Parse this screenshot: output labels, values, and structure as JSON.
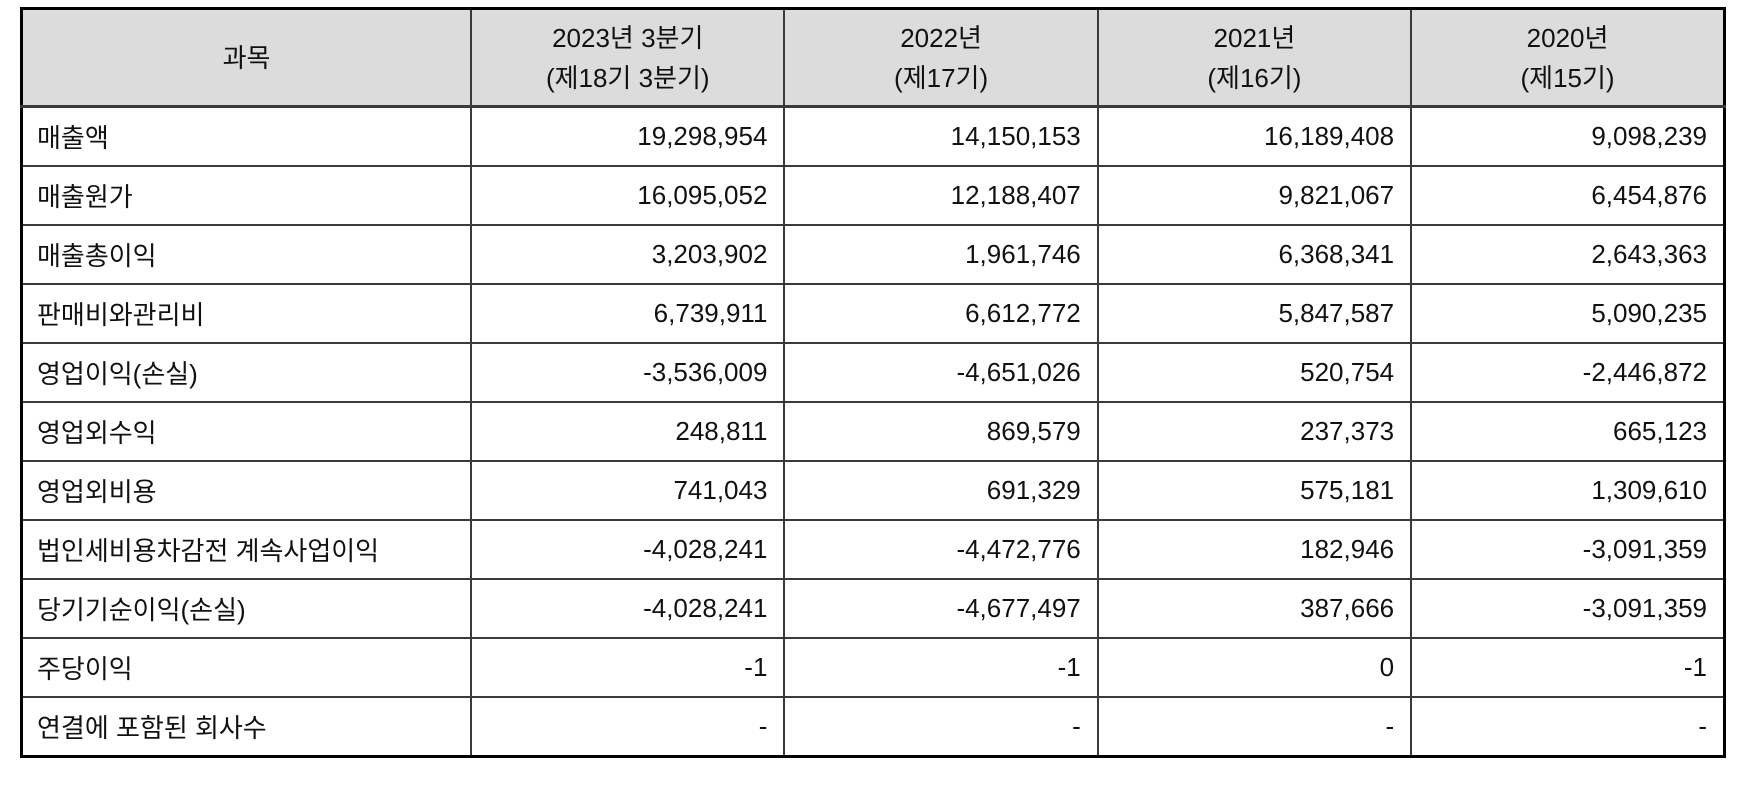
{
  "table": {
    "columns": [
      {
        "line1": "과목",
        "line2": ""
      },
      {
        "line1": "2023년 3분기",
        "line2": "(제18기 3분기)"
      },
      {
        "line1": "2022년",
        "line2": "(제17기)"
      },
      {
        "line1": "2021년",
        "line2": "(제16기)"
      },
      {
        "line1": "2020년",
        "line2": "(제15기)"
      }
    ],
    "rows": [
      {
        "label": "매출액",
        "values": [
          "19,298,954",
          "14,150,153",
          "16,189,408",
          "9,098,239"
        ]
      },
      {
        "label": "매출원가",
        "values": [
          "16,095,052",
          "12,188,407",
          "9,821,067",
          "6,454,876"
        ]
      },
      {
        "label": "매출총이익",
        "values": [
          "3,203,902",
          "1,961,746",
          "6,368,341",
          "2,643,363"
        ]
      },
      {
        "label": "판매비와관리비",
        "values": [
          "6,739,911",
          "6,612,772",
          "5,847,587",
          "5,090,235"
        ]
      },
      {
        "label": "영업이익(손실)",
        "values": [
          "-3,536,009",
          "-4,651,026",
          "520,754",
          "-2,446,872"
        ]
      },
      {
        "label": "영업외수익",
        "values": [
          "248,811",
          "869,579",
          "237,373",
          "665,123"
        ]
      },
      {
        "label": "영업외비용",
        "values": [
          "741,043",
          "691,329",
          "575,181",
          "1,309,610"
        ]
      },
      {
        "label": "법인세비용차감전 계속사업이익",
        "values": [
          "-4,028,241",
          "-4,472,776",
          "182,946",
          "-3,091,359"
        ]
      },
      {
        "label": "당기기순이익(손실)",
        "values": [
          "-4,028,241",
          "-4,677,497",
          "387,666",
          "-3,091,359"
        ]
      },
      {
        "label": "주당이익",
        "values": [
          "-1",
          "-1",
          "0",
          "-1"
        ]
      },
      {
        "label": "연결에 포함된 회사수",
        "values": [
          "-",
          "-",
          "-",
          "-"
        ]
      }
    ]
  },
  "colors": {
    "header_bg": "#dcdcdc",
    "inner_border": "#3a3a3a",
    "outer_border": "#000000",
    "text": "#111111"
  }
}
